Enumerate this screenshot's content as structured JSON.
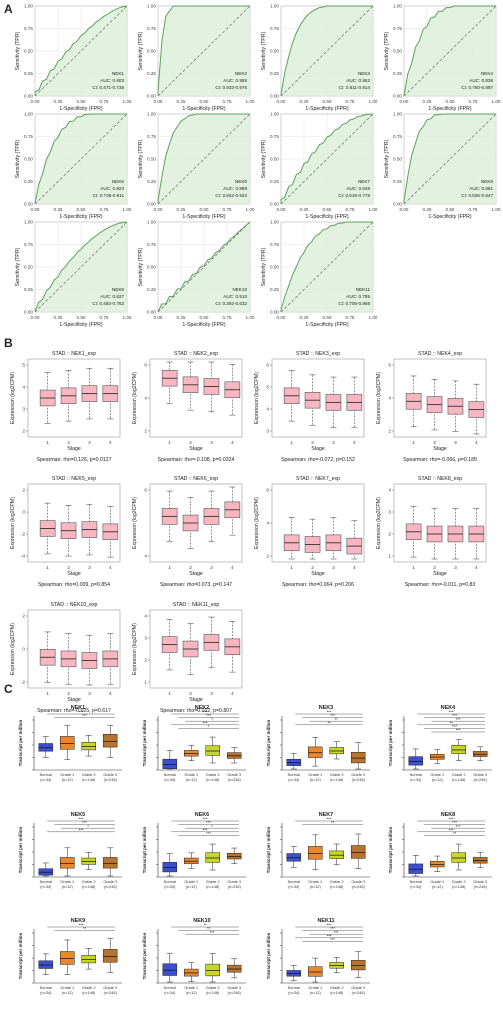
{
  "panel_labels": {
    "a": "A",
    "b": "B",
    "c": "C"
  },
  "roc": {
    "xlabel": "1-Specificity (FPR)",
    "ylabel": "Sensitivity (TPR)",
    "ticks": [
      "0.00",
      "0.25",
      "0.50",
      "0.75",
      "1.00"
    ],
    "panels": [
      {
        "gene": "NEK1",
        "auc": "AUC: 0.603",
        "ci": "CI: 0.471-0.735"
      },
      {
        "gene": "NEK2",
        "auc": "AUC: 0.955",
        "ci": "CI: 0.933-0.976"
      },
      {
        "gene": "NEK3",
        "auc": "AUC: 0.862",
        "ci": "CI: 0.811-0.914"
      },
      {
        "gene": "NEK4",
        "auc": "AUC: 0.838",
        "ci": "CI: 0.780-0.897"
      },
      {
        "gene": "NEK5",
        "auc": "AUC: 0.823",
        "ci": "CI: 0.735-0.911"
      },
      {
        "gene": "NEK6",
        "auc": "AUC: 0.888",
        "ci": "CI: 0.842-0.933"
      },
      {
        "gene": "NEK7",
        "auc": "AUC: 0.648",
        "ci": "CI: 0.518-0.778"
      },
      {
        "gene": "NEK8",
        "auc": "AUC: 0.891",
        "ci": "CI: 0.836-0.947"
      },
      {
        "gene": "NEK9",
        "auc": "AUC: 0.627",
        "ci": "CI: 0.492-0.762"
      },
      {
        "gene": "NEK10",
        "auc": "AUC: 0.510",
        "ci": "CI: 0.392-0.632"
      },
      {
        "gene": "NEK11",
        "auc": "AUC: 0.785",
        "ci": "CI: 0.705-0.866"
      }
    ]
  },
  "stage": {
    "xlabel": "Stage",
    "ylabel": "Expression (log2CPM)",
    "categories": [
      "1",
      "2",
      "3",
      "4"
    ],
    "panels": [
      {
        "title": "STAD :: NEK1_exp",
        "caption": "Spearman: rho=0.126, p=0.0127",
        "ticks": [
          "2",
          "3",
          "4",
          "5"
        ]
      },
      {
        "title": "STAD :: NEK2_exp",
        "caption": "Spearman: rho=-0.108, p=0.0324",
        "ticks": [
          "2",
          "4",
          "6"
        ]
      },
      {
        "title": "STAD :: NEK3_exp",
        "caption": "Spearman: rho=-0.072, p=0.152",
        "ticks": [
          "3",
          "4",
          "5",
          "6"
        ]
      },
      {
        "title": "STAD :: NEK4_exp",
        "caption": "Spearman: rho=-0.066, p=0.189",
        "ticks": [
          "2",
          "4",
          "6"
        ]
      },
      {
        "title": "STAD :: NEK5_exp",
        "caption": "Spearman: rho=0.009, p=0.854",
        "ticks": [
          "-4",
          "-2",
          "0",
          "2"
        ]
      },
      {
        "title": "STAD :: NEK6_exp",
        "caption": "Spearman: rho=0.073, p=0.147",
        "ticks": [
          "4",
          "6"
        ]
      },
      {
        "title": "STAD :: NEK7_exp",
        "caption": "Spearman: rho=0.064, p=0.206",
        "ticks": [
          "2",
          "4",
          "6"
        ]
      },
      {
        "title": "STAD :: NEK8_exp",
        "caption": "Spearman: rho=-0.011, p=0.83",
        "ticks": [
          "1",
          "2",
          "3",
          "4"
        ]
      },
      {
        "title": "STAD :: NEK10_exp",
        "caption": "Spearman: rho=-0.025, p=0.617",
        "ticks": [
          "-2",
          "0",
          "2"
        ]
      },
      {
        "title": "STAD :: NEK11_exp",
        "caption": "Spearman: rho=0.012, p=0.807",
        "ticks": [
          "1",
          "2",
          "3",
          "4"
        ]
      }
    ]
  },
  "grade": {
    "ylabel": "Transcript per million",
    "categories": [
      "Normal",
      "Grade 1",
      "Grade 2",
      "Grade 3"
    ],
    "colors": [
      "#3b4fd1",
      "#e8872c",
      "#c7d62a",
      "#b8742f"
    ],
    "panels": [
      {
        "gene": "NEK1",
        "n": [
          "(n=34)",
          "(n=12)",
          "(n=148)",
          "(n=246)"
        ],
        "sig": [
          "***",
          "***"
        ]
      },
      {
        "gene": "NEK2",
        "n": [
          "(n=34)",
          "(n=12)",
          "(n=148)",
          "(n=246)"
        ],
        "sig": [
          "***",
          "***",
          "*",
          "***",
          "*"
        ]
      },
      {
        "gene": "NEK3",
        "n": [
          "(n=34)",
          "(n=12)",
          "(n=148)",
          "(n=246)"
        ],
        "sig": [
          "***",
          "***",
          "**",
          "**"
        ]
      },
      {
        "gene": "NEK4",
        "n": [
          "(n=34)",
          "(n=12)",
          "(n=148)",
          "(n=246)"
        ],
        "sig": [
          "***",
          "***",
          "***",
          "**",
          "***",
          "***"
        ]
      },
      {
        "gene": "NEK5",
        "n": [
          "(n=34)",
          "(n=12)",
          "(n=148)",
          "(n=246)"
        ],
        "sig": [
          "***",
          "***",
          "*",
          "***"
        ]
      },
      {
        "gene": "NEK6",
        "n": [
          "(n=34)",
          "(n=12)",
          "(n=148)",
          "(n=246)"
        ],
        "sig": [
          "***",
          "***",
          "*",
          "***",
          "***"
        ]
      },
      {
        "gene": "NEK7",
        "n": [
          "(n=34)",
          "(n=12)",
          "(n=148)",
          "(n=246)"
        ],
        "sig": [
          "***",
          "**"
        ]
      },
      {
        "gene": "NEK8",
        "n": [
          "(n=34)",
          "(n=12)",
          "(n=148)",
          "(n=246)"
        ],
        "sig": [
          "***",
          "***",
          "***",
          "***",
          "**"
        ]
      },
      {
        "gene": "NEK9",
        "n": [
          "(n=34)",
          "(n=12)",
          "(n=148)",
          "(n=246)"
        ],
        "sig": [
          "***",
          "**"
        ]
      },
      {
        "gene": "NEK10",
        "n": [
          "(n=34)",
          "(n=12)",
          "(n=148)",
          "(n=246)"
        ],
        "sig": [
          "**",
          "**",
          "***"
        ]
      },
      {
        "gene": "NEK11",
        "n": [
          "(n=34)",
          "(n=12)",
          "(n=148)",
          "(n=246)"
        ],
        "sig": [
          "***",
          "***",
          "***",
          "***",
          "***"
        ]
      }
    ]
  },
  "chart_data": [
    {
      "type": "line",
      "panel": "A",
      "xlabel": "1-Specificity (FPR)",
      "ylabel": "Sensitivity (TPR)",
      "xlim": [
        0,
        1
      ],
      "ylim": [
        0,
        1
      ],
      "series": [
        {
          "name": "NEK1",
          "auc": 0.603
        },
        {
          "name": "NEK2",
          "auc": 0.955
        },
        {
          "name": "NEK3",
          "auc": 0.862
        },
        {
          "name": "NEK4",
          "auc": 0.838
        },
        {
          "name": "NEK5",
          "auc": 0.823
        },
        {
          "name": "NEK6",
          "auc": 0.888
        },
        {
          "name": "NEK7",
          "auc": 0.648
        },
        {
          "name": "NEK8",
          "auc": 0.891
        },
        {
          "name": "NEK9",
          "auc": 0.627
        },
        {
          "name": "NEK10",
          "auc": 0.51
        },
        {
          "name": "NEK11",
          "auc": 0.785
        }
      ]
    },
    {
      "type": "box",
      "panel": "B",
      "categories": [
        "1",
        "2",
        "3",
        "4"
      ],
      "series": [
        {
          "name": "NEK1_exp",
          "medians": [
            3.5,
            3.6,
            3.7,
            3.7
          ]
        },
        {
          "name": "NEK2_exp",
          "medians": [
            5.2,
            4.8,
            4.7,
            4.5
          ]
        },
        {
          "name": "NEK3_exp",
          "medians": [
            4.6,
            4.4,
            4.3,
            4.3
          ]
        },
        {
          "name": "NEK4_exp",
          "medians": [
            3.8,
            3.6,
            3.5,
            3.3
          ]
        },
        {
          "name": "NEK5_exp",
          "medians": [
            -1.5,
            -1.7,
            -1.6,
            -1.8
          ]
        },
        {
          "name": "NEK6_exp",
          "medians": [
            5.2,
            5.0,
            5.2,
            5.4
          ]
        },
        {
          "name": "NEK7_exp",
          "medians": [
            2.8,
            2.7,
            2.8,
            2.6
          ]
        },
        {
          "name": "NEK8_exp",
          "medians": [
            2.1,
            2.0,
            2.0,
            2.0
          ]
        },
        {
          "name": "NEK10_exp",
          "medians": [
            -0.5,
            -0.6,
            -0.7,
            -0.6
          ]
        },
        {
          "name": "NEK11_exp",
          "medians": [
            2.7,
            2.5,
            2.8,
            2.6
          ]
        }
      ]
    },
    {
      "type": "box",
      "panel": "C",
      "categories": [
        "Normal",
        "Grade 1",
        "Grade 2",
        "Grade 3"
      ]
    }
  ]
}
